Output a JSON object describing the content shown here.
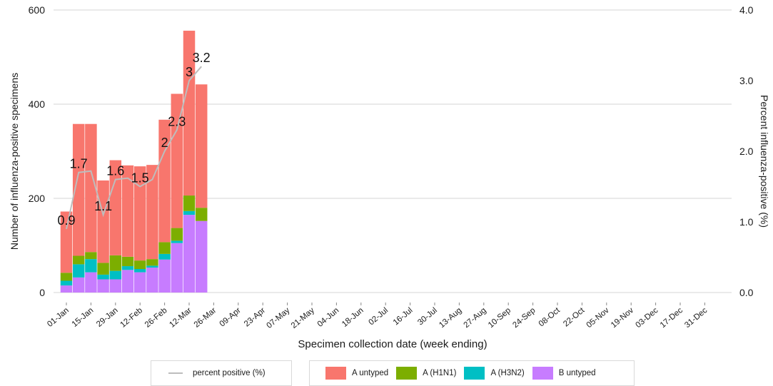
{
  "chart_data": {
    "type": "bar",
    "stacked": true,
    "xlabel": "Specimen collection date (week ending)",
    "ylabel": "Number of influenza-positive specimens",
    "y2label": "Percent influenza-positive (%)",
    "ylim": [
      0,
      600
    ],
    "y2lim": [
      0,
      4
    ],
    "yticks": [
      "0",
      "200",
      "400",
      "600"
    ],
    "y2ticks": [
      "0.0",
      "1.0",
      "2.0",
      "3.0",
      "4.0"
    ],
    "grid": true,
    "legend_position": "bottom",
    "x_tick_labels": [
      "01-Jan",
      "15-Jan",
      "29-Jan",
      "12-Feb",
      "26-Feb",
      "12-Mar",
      "26-Mar",
      "09-Apr",
      "23-Apr",
      "07-May",
      "21-May",
      "04-Jun",
      "18-Jun",
      "02-Jul",
      "16-Jul",
      "30-Jul",
      "13-Aug",
      "27-Aug",
      "10-Sep",
      "24-Sep",
      "08-Oct",
      "22-Oct",
      "05-Nov",
      "19-Nov",
      "03-Dec",
      "17-Dec",
      "31-Dec"
    ],
    "categories": [
      "01-Jan",
      "08-Jan",
      "15-Jan",
      "22-Jan",
      "29-Jan",
      "05-Feb",
      "12-Feb",
      "19-Feb",
      "26-Feb",
      "05-Mar",
      "12-Mar",
      "19-Mar"
    ],
    "series": [
      {
        "name": "B untyped",
        "color": "#c77cff",
        "values": [
          15,
          32,
          43,
          28,
          28,
          48,
          43,
          53,
          70,
          105,
          165,
          152
        ]
      },
      {
        "name": "A (H3N2)",
        "color": "#00bfc4",
        "values": [
          10,
          28,
          28,
          10,
          18,
          8,
          7,
          4,
          12,
          5,
          8,
          0
        ]
      },
      {
        "name": "A (H1N1)",
        "color": "#7cae00",
        "values": [
          17,
          18,
          15,
          25,
          33,
          20,
          18,
          14,
          25,
          27,
          33,
          28
        ]
      },
      {
        "name": "A untyped",
        "color": "#f8766d",
        "values": [
          130,
          280,
          272,
          175,
          202,
          194,
          200,
          200,
          260,
          285,
          350,
          262
        ]
      }
    ],
    "line_series": {
      "name": "percent positive (%)",
      "color": "#bdbdbd",
      "values": [
        0.9,
        1.7,
        1.72,
        1.1,
        1.6,
        1.62,
        1.5,
        1.6,
        2.0,
        2.3,
        3.0,
        3.2
      ],
      "labels": [
        "0.9",
        "1.7",
        "",
        "1.1",
        "1.6",
        "",
        "1.5",
        "",
        "2",
        "2.3",
        "3",
        "3.2"
      ]
    }
  }
}
